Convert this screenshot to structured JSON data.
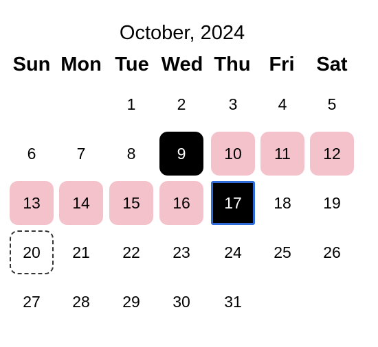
{
  "calendar": {
    "month_label": "October, 2024",
    "weekdays": [
      "Sun",
      "Mon",
      "Tue",
      "Wed",
      "Thu",
      "Fri",
      "Sat"
    ],
    "start_weekday_index": 2,
    "days_in_month": 31,
    "selected_day": 9,
    "range_days": [
      10,
      11,
      12,
      13,
      14,
      15,
      16
    ],
    "focused_day": 17,
    "today_day": 20,
    "colors": {
      "range_fill": "#f4c2cb",
      "selected_fill": "#000000",
      "focus_ring": "#2e6bd6",
      "today_border": "#333333"
    }
  }
}
